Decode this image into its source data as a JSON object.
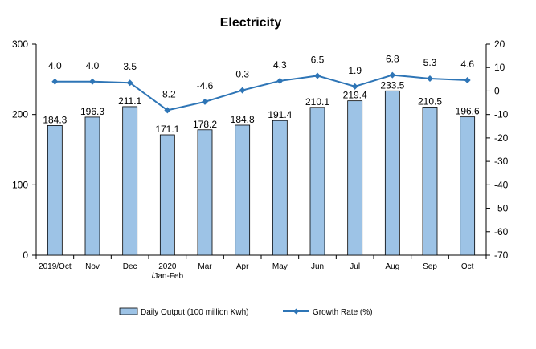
{
  "chart_data": {
    "type": "bar",
    "title": "Electricity",
    "categories": [
      [
        "2019/Oct"
      ],
      [
        "Nov"
      ],
      [
        "Dec"
      ],
      [
        "2020",
        "/Jan-Feb"
      ],
      [
        "Mar"
      ],
      [
        "Apr"
      ],
      [
        "May"
      ],
      [
        "Jun"
      ],
      [
        "Jul"
      ],
      [
        "Aug"
      ],
      [
        "Sep"
      ],
      [
        "Oct"
      ]
    ],
    "series": [
      {
        "name": "Daily Output (100 million Kwh)",
        "type": "bar",
        "axis": "left",
        "color": "#9DC3E6",
        "values": [
          184.3,
          196.3,
          211.1,
          171.1,
          178.2,
          184.8,
          191.4,
          210.1,
          219.4,
          233.5,
          210.5,
          196.6
        ],
        "labels": [
          "184.3",
          "196.3",
          "211.1",
          "171.1",
          "178.2",
          "184.8",
          "191.4",
          "210.1",
          "219.4",
          "233.5",
          "210.5",
          "196.6"
        ]
      },
      {
        "name": "Growth Rate (%)",
        "type": "line",
        "axis": "right",
        "color": "#2E75B6",
        "values": [
          4.0,
          4.0,
          3.5,
          -8.2,
          -4.6,
          0.3,
          4.3,
          6.5,
          1.9,
          6.8,
          5.3,
          4.6
        ],
        "labels": [
          "4.0",
          "4.0",
          "3.5",
          "-8.2",
          "-4.6",
          "0.3",
          "4.3",
          "6.5",
          "1.9",
          "6.8",
          "5.3",
          "4.6"
        ]
      }
    ],
    "y_left": {
      "min": 0,
      "max": 300,
      "ticks": [
        "0",
        "100",
        "200",
        "300"
      ]
    },
    "y_right": {
      "min": -70,
      "max": 20,
      "ticks": [
        "-70",
        "-60",
        "-50",
        "-40",
        "-30",
        "-20",
        "-10",
        "0",
        "10",
        "20"
      ]
    },
    "grid": false,
    "legend": "bottom"
  }
}
